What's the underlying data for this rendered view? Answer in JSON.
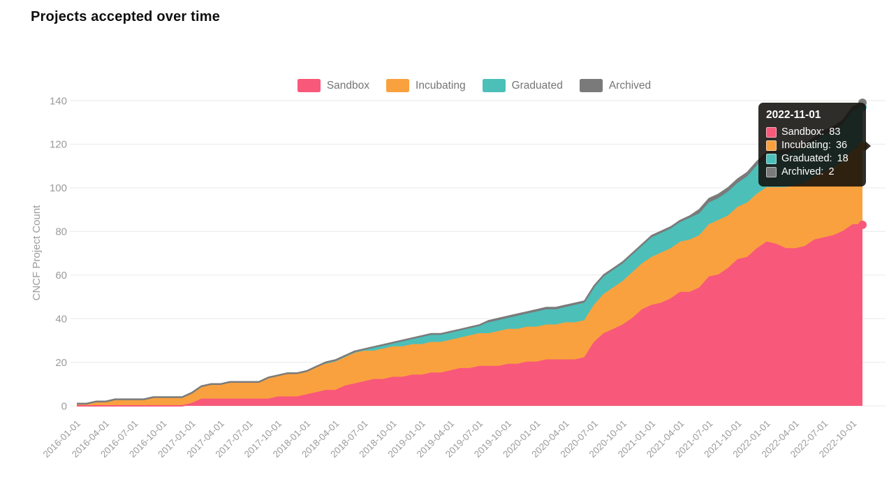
{
  "title": "Projects accepted over time",
  "y_axis": {
    "label": "CNCF Project Count",
    "ticks": [
      0,
      20,
      40,
      60,
      80,
      100,
      120,
      140
    ]
  },
  "legend": {
    "items": [
      {
        "label": "Sandbox",
        "color": "#F8587A"
      },
      {
        "label": "Incubating",
        "color": "#F9A13F"
      },
      {
        "label": "Graduated",
        "color": "#4CBFB9"
      },
      {
        "label": "Archived",
        "color": "#7A7A7A"
      }
    ]
  },
  "tooltip": {
    "date": "2022-11-01",
    "rows": [
      {
        "label": "Sandbox:",
        "value": "83",
        "color": "#F8587A"
      },
      {
        "label": "Incubating:",
        "value": "36",
        "color": "#F9A13F"
      },
      {
        "label": "Graduated:",
        "value": "18",
        "color": "#4CBFB9"
      },
      {
        "label": "Archived:",
        "value": "2",
        "color": "#7A7A7A"
      }
    ]
  },
  "chart_data": {
    "type": "area",
    "stacked": true,
    "title": "Projects accepted over time",
    "xlabel": "",
    "ylabel": "CNCF Project Count",
    "ylim": [
      0,
      140
    ],
    "grid": true,
    "legend_position": "top-center",
    "x_tick_every_months": 3,
    "x": [
      "2016-01-01",
      "2016-02-01",
      "2016-03-01",
      "2016-04-01",
      "2016-05-01",
      "2016-06-01",
      "2016-07-01",
      "2016-08-01",
      "2016-09-01",
      "2016-10-01",
      "2016-11-01",
      "2016-12-01",
      "2017-01-01",
      "2017-02-01",
      "2017-03-01",
      "2017-04-01",
      "2017-05-01",
      "2017-06-01",
      "2017-07-01",
      "2017-08-01",
      "2017-09-01",
      "2017-10-01",
      "2017-11-01",
      "2017-12-01",
      "2018-01-01",
      "2018-02-01",
      "2018-03-01",
      "2018-04-01",
      "2018-05-01",
      "2018-06-01",
      "2018-07-01",
      "2018-08-01",
      "2018-09-01",
      "2018-10-01",
      "2018-11-01",
      "2018-12-01",
      "2019-01-01",
      "2019-02-01",
      "2019-03-01",
      "2019-04-01",
      "2019-05-01",
      "2019-06-01",
      "2019-07-01",
      "2019-08-01",
      "2019-09-01",
      "2019-10-01",
      "2019-11-01",
      "2019-12-01",
      "2020-01-01",
      "2020-02-01",
      "2020-03-01",
      "2020-04-01",
      "2020-05-01",
      "2020-06-01",
      "2020-07-01",
      "2020-08-01",
      "2020-09-01",
      "2020-10-01",
      "2020-11-01",
      "2020-12-01",
      "2021-01-01",
      "2021-02-01",
      "2021-03-01",
      "2021-04-01",
      "2021-05-01",
      "2021-06-01",
      "2021-07-01",
      "2021-08-01",
      "2021-09-01",
      "2021-10-01",
      "2021-11-01",
      "2021-12-01",
      "2022-01-01",
      "2022-02-01",
      "2022-03-01",
      "2022-04-01",
      "2022-05-01",
      "2022-06-01",
      "2022-07-01",
      "2022-08-01",
      "2022-09-01",
      "2022-10-01",
      "2022-11-01"
    ],
    "series": [
      {
        "name": "Sandbox",
        "color": "#F8587A",
        "values": [
          0,
          0,
          0,
          0,
          0,
          0,
          0,
          0,
          0,
          0,
          0,
          0,
          1,
          3,
          3,
          3,
          3,
          3,
          3,
          3,
          3,
          4,
          4,
          4,
          5,
          6,
          7,
          7,
          9,
          10,
          11,
          12,
          12,
          13,
          13,
          14,
          14,
          15,
          15,
          16,
          17,
          17,
          18,
          18,
          18,
          19,
          19,
          20,
          20,
          21,
          21,
          21,
          21,
          22,
          29,
          33,
          35,
          37,
          40,
          44,
          46,
          47,
          49,
          52,
          52,
          54,
          59,
          60,
          63,
          67,
          68,
          72,
          75,
          74,
          72,
          72,
          73,
          76,
          77,
          78,
          80,
          83,
          83
        ]
      },
      {
        "name": "Incubating",
        "color": "#F9A13F",
        "values": [
          1,
          1,
          2,
          2,
          3,
          3,
          3,
          3,
          4,
          4,
          4,
          4,
          5,
          6,
          7,
          7,
          8,
          8,
          8,
          8,
          10,
          10,
          11,
          11,
          11,
          12,
          12,
          13,
          13,
          14,
          14,
          13,
          14,
          14,
          14,
          14,
          14,
          14,
          14,
          14,
          14,
          15,
          15,
          15,
          16,
          16,
          16,
          16,
          16,
          16,
          16,
          17,
          17,
          17,
          17,
          18,
          19,
          20,
          21,
          21,
          22,
          23,
          23,
          23,
          24,
          24,
          24,
          25,
          24,
          24,
          25,
          25,
          25,
          26,
          28,
          29,
          29,
          29,
          30,
          31,
          32,
          34,
          36
        ]
      },
      {
        "name": "Graduated",
        "color": "#4CBFB9",
        "values": [
          0,
          0,
          0,
          0,
          0,
          0,
          0,
          0,
          0,
          0,
          0,
          0,
          0,
          0,
          0,
          0,
          0,
          0,
          0,
          0,
          0,
          0,
          0,
          0,
          0,
          0,
          1,
          1,
          1,
          1,
          1,
          2,
          2,
          2,
          3,
          3,
          4,
          4,
          4,
          4,
          4,
          4,
          4,
          5,
          5,
          5,
          6,
          6,
          7,
          7,
          7,
          7,
          8,
          8,
          8,
          8,
          8,
          8,
          8,
          8,
          9,
          9,
          9,
          9,
          10,
          10,
          10,
          10,
          11,
          11,
          12,
          13,
          14,
          15,
          15,
          16,
          16,
          16,
          17,
          17,
          17,
          18,
          18
        ]
      },
      {
        "name": "Archived",
        "color": "#7A7A7A",
        "values": [
          0,
          0,
          0,
          0,
          0,
          0,
          0,
          0,
          0,
          0,
          0,
          0,
          0,
          0,
          0,
          0,
          0,
          0,
          0,
          0,
          0,
          0,
          0,
          0,
          0,
          0,
          0,
          0,
          0,
          0,
          0,
          0,
          0,
          0,
          0,
          0,
          0,
          0,
          0,
          0,
          0,
          0,
          0,
          1,
          1,
          1,
          1,
          1,
          1,
          1,
          1,
          1,
          1,
          1,
          1,
          1,
          1,
          1,
          1,
          1,
          1,
          1,
          1,
          1,
          1,
          2,
          2,
          2,
          2,
          2,
          2,
          2,
          2,
          2,
          2,
          2,
          2,
          2,
          2,
          2,
          2,
          2,
          2
        ]
      }
    ]
  },
  "style": {
    "grid_color": "#E9E9E9",
    "axis_text_color": "#9B9B9B",
    "total_line_color": "#7B7B7B"
  }
}
